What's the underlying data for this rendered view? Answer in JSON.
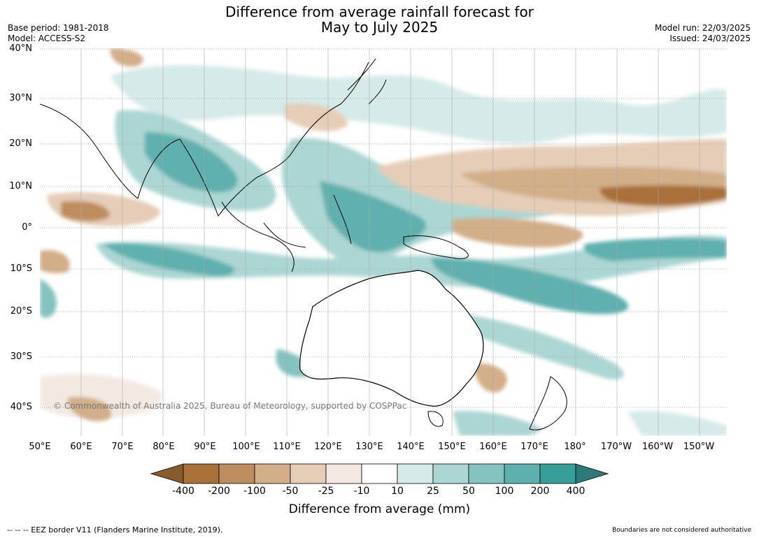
{
  "title": {
    "line1": "Difference from average rainfall forecast for",
    "line2": "May to July 2025"
  },
  "meta": {
    "base_period": "Base period: 1981-2018",
    "model": "Model: ACCESS-S2",
    "model_run": "Model run: 22/03/2025",
    "issued": "Issued: 24/03/2025"
  },
  "lat_labels": [
    "40°N",
    "30°N",
    "20°N",
    "10°N",
    "0°",
    "10°S",
    "20°S",
    "30°S",
    "40°S"
  ],
  "lon_labels": [
    "50°E",
    "60°E",
    "70°E",
    "80°E",
    "90°E",
    "100°E",
    "110°E",
    "120°E",
    "130°E",
    "140°E",
    "150°E",
    "160°E",
    "170°E",
    "180°",
    "170°W",
    "160°W",
    "150°W"
  ],
  "copyright": "© Commonwealth of Australia 2025, Bureau of Meteorology, supported by COSPPac",
  "colorbar": {
    "labels": [
      "-400",
      "-200",
      "-100",
      "-50",
      "-25",
      "-10",
      "10",
      "25",
      "50",
      "100",
      "200",
      "400"
    ],
    "colors": [
      "#a9703a",
      "#be8d5f",
      "#d2ae89",
      "#e5cdb8",
      "#f3e9e2",
      "#ffffff",
      "#d6eae8",
      "#acd6d3",
      "#85c3c0",
      "#5eb0ae",
      "#389e9a",
      "#2d7a78",
      "#8b5a2b"
    ],
    "title": "Difference from average (mm)"
  },
  "footer": {
    "eez_note": "--  --  -- EEZ border V11 (Flanders Marine Institute, 2019).",
    "disclaimer": "Boundaries are not considered authoritative"
  }
}
